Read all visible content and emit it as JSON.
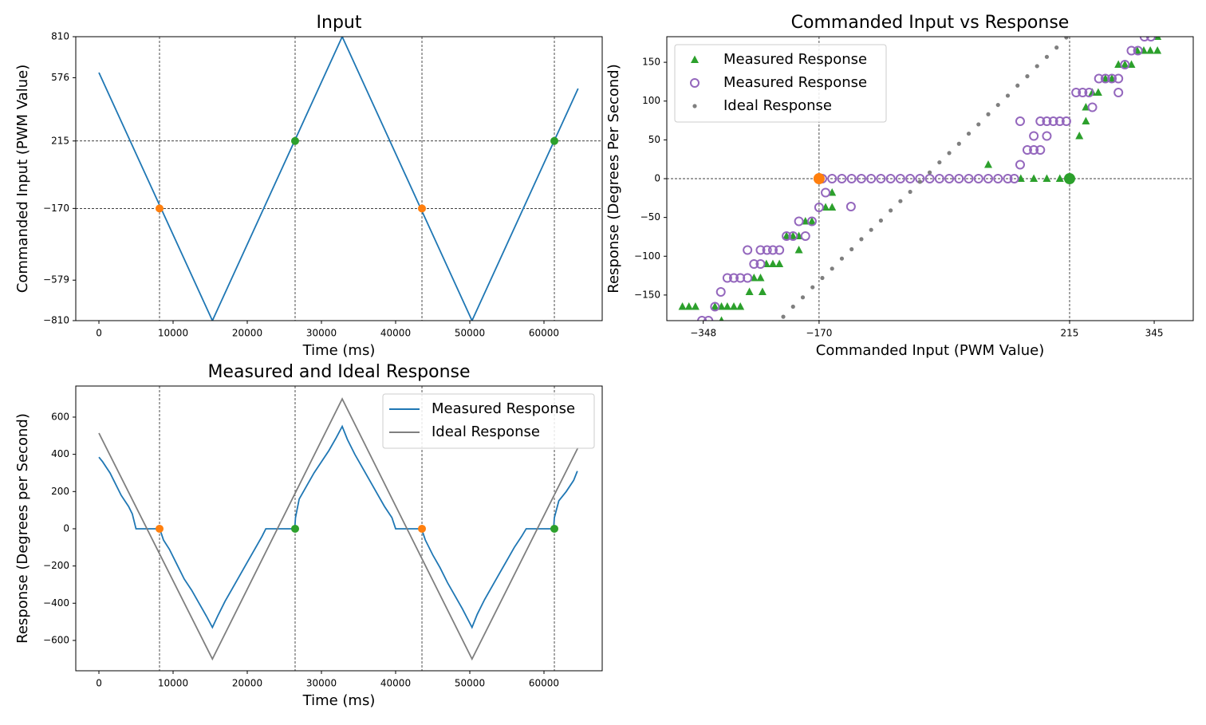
{
  "chart_data": [
    {
      "type": "line",
      "title": "Input",
      "xlabel": "Time (ms)",
      "ylabel": "Commanded Input (PWM Value)",
      "xlim": [
        -3120,
        67850
      ],
      "ylim": [
        -810,
        810
      ],
      "xticks": [
        0,
        10000,
        20000,
        30000,
        40000,
        50000,
        60000
      ],
      "yticks": [
        {
          "value": -810,
          "label": "−810"
        },
        {
          "value": -579,
          "label": "−579"
        },
        {
          "value": -170,
          "label": "−170"
        },
        215,
        576,
        810
      ],
      "vlines": [
        8170,
        26450,
        43550,
        61400
      ],
      "hlines": [
        215,
        -170
      ],
      "series": [
        {
          "color": "#1f77b4",
          "x": [
            0,
            15300,
            32800,
            50300,
            64600
          ],
          "values": [
            605,
            -810,
            810,
            -810,
            514
          ]
        }
      ],
      "points": [
        {
          "x": 8170,
          "y": -170,
          "color": "#ff7f0e"
        },
        {
          "x": 26450,
          "y": 215,
          "color": "#2ca02c"
        },
        {
          "x": 43550,
          "y": -170,
          "color": "#ff7f0e"
        },
        {
          "x": 61400,
          "y": 215,
          "color": "#2ca02c"
        }
      ]
    },
    {
      "type": "scatter",
      "title": "Commanded Input vs Response",
      "xlabel": "Commanded Input (PWM Value)",
      "ylabel": "Response (Degrees Per Second)",
      "xlim": [
        -404,
        405
      ],
      "ylim": [
        -183,
        183
      ],
      "xticks": [
        {
          "value": -348,
          "label": "−348"
        },
        {
          "value": -170,
          "label": "−170"
        },
        215,
        345
      ],
      "yticks": [
        {
          "value": -150,
          "label": "−150"
        },
        {
          "value": -100,
          "label": "−100"
        },
        {
          "value": -50,
          "label": "−50"
        },
        0,
        50,
        100,
        150
      ],
      "vlines": [
        -170,
        215
      ],
      "hlines": [
        0
      ],
      "legend": "upper left",
      "series": [
        {
          "name": "Measured Response",
          "color": "#2ca02c",
          "marker": "^",
          "x": [
            -380,
            -370,
            -360,
            -330,
            -320,
            -311,
            -301,
            -291,
            -320,
            -277,
            -257,
            -270,
            -260,
            -251,
            -241,
            -231,
            -201,
            -220,
            -210,
            -201,
            -191,
            -181,
            -160,
            -150,
            -150,
            90,
            140,
            160,
            180,
            200,
            230,
            240,
            240,
            250,
            259,
            270,
            280,
            290,
            300,
            310,
            319,
            329,
            339,
            350,
            350
          ],
          "values": [
            -165,
            -165,
            -165,
            -165,
            -165,
            -165,
            -165,
            -165,
            -183,
            -146,
            -146,
            -128,
            -128,
            -110,
            -110,
            -110,
            -92,
            -74,
            -74,
            -74,
            -55,
            -55,
            -37,
            -37,
            -18,
            18,
            0,
            0,
            0,
            0,
            55,
            74,
            92,
            111,
            111,
            129,
            129,
            147,
            147,
            147,
            165,
            165,
            165,
            165,
            183
          ]
        },
        {
          "name": "Measured Response",
          "color": "#9467bd",
          "marker": "o",
          "x": [
            -350,
            -340,
            -330,
            -321,
            -311,
            -301,
            -291,
            -280,
            -270,
            -260,
            -280,
            -260,
            -250,
            -241,
            -231,
            -220,
            -210,
            -191,
            -201,
            -181,
            -170,
            -160,
            -121,
            -165,
            -150,
            -135,
            -120,
            -105,
            -90,
            -75,
            -60,
            -45,
            -30,
            -15,
            0,
            15,
            30,
            45,
            60,
            75,
            90,
            105,
            120,
            130,
            139,
            139,
            150,
            160,
            170,
            160,
            180,
            170,
            180,
            190,
            200,
            210,
            225,
            235,
            245,
            250,
            260,
            270,
            280,
            290,
            290,
            300,
            310,
            320,
            330,
            340
          ],
          "values": [
            -183,
            -183,
            -165,
            -146,
            -128,
            -128,
            -128,
            -128,
            -110,
            -110,
            -92,
            -92,
            -92,
            -92,
            -92,
            -74,
            -74,
            -74,
            -55,
            -55,
            -37,
            -18,
            -36,
            0,
            0,
            0,
            0,
            0,
            0,
            0,
            0,
            0,
            0,
            0,
            0,
            0,
            0,
            0,
            0,
            0,
            0,
            0,
            0,
            0,
            18,
            74,
            37,
            37,
            37,
            55,
            55,
            74,
            74,
            74,
            74,
            74,
            111,
            111,
            111,
            92,
            129,
            129,
            129,
            111,
            129,
            147,
            165,
            165,
            183,
            183
          ]
        },
        {
          "name": "Ideal Response",
          "color": "#7f7f7f",
          "marker": ".",
          "x": [
            -240,
            -225,
            -210,
            -195,
            -180,
            -165,
            -150,
            -135,
            -120,
            -105,
            -90,
            -75,
            -60,
            -45,
            -30,
            -15,
            0,
            15,
            30,
            45,
            60,
            75,
            90,
            105,
            120,
            135,
            150,
            165,
            180,
            195,
            210
          ],
          "values": [
            -190,
            -178,
            -165,
            -153,
            -140,
            -128,
            -116,
            -103,
            -91,
            -78,
            -66,
            -54,
            -41,
            -29,
            -17,
            -4,
            8,
            21,
            33,
            45,
            58,
            70,
            83,
            95,
            107,
            120,
            132,
            145,
            157,
            169,
            182
          ]
        }
      ],
      "points": [
        {
          "x": -170,
          "y": 0,
          "color": "#ff7f0e"
        },
        {
          "x": 215,
          "y": 0,
          "color": "#2ca02c"
        }
      ]
    },
    {
      "type": "line",
      "title": "Measured and Ideal Response",
      "xlabel": "Time (ms)",
      "ylabel": "Response (Degrees per Second)",
      "xlim": [
        -3120,
        67850
      ],
      "ylim": [
        -763,
        767
      ],
      "xticks": [
        0,
        10000,
        20000,
        30000,
        40000,
        50000,
        60000
      ],
      "yticks": [
        {
          "value": -600,
          "label": "−600"
        },
        {
          "value": -400,
          "label": "−400"
        },
        {
          "value": -200,
          "label": "−200"
        },
        0,
        200,
        400,
        600
      ],
      "vlines": [
        8170,
        26450,
        43550,
        61400
      ],
      "legend": "upper right",
      "series": [
        {
          "name": "Measured Response",
          "color": "#1f77b4",
          "x": [
            0,
            500,
            1000,
            1500,
            2000,
            2500,
            3000,
            3500,
            4000,
            4500,
            5000,
            5100,
            8200,
            8700,
            9500,
            10500,
            11500,
            12500,
            13500,
            14500,
            15300,
            16000,
            17000,
            18000,
            19000,
            20000,
            21000,
            22000,
            22500,
            26400,
            26500,
            27000,
            28000,
            29000,
            30000,
            31000,
            32000,
            32800,
            33500,
            34500,
            35500,
            36500,
            37500,
            38500,
            39500,
            40000,
            43500,
            44000,
            45000,
            46000,
            47000,
            48000,
            49000,
            50300,
            51000,
            52000,
            53000,
            54000,
            55000,
            56000,
            57000,
            57600,
            61300,
            61400,
            62000,
            63000,
            64000,
            64500
          ],
          "values": [
            385,
            360,
            330,
            300,
            260,
            220,
            180,
            150,
            120,
            80,
            0,
            0,
            0,
            -60,
            -110,
            -190,
            -270,
            -330,
            -400,
            -470,
            -530,
            -470,
            -390,
            -320,
            -250,
            -180,
            -110,
            -40,
            0,
            0,
            60,
            160,
            230,
            300,
            360,
            420,
            490,
            550,
            480,
            400,
            330,
            260,
            190,
            120,
            60,
            0,
            0,
            -60,
            -140,
            -210,
            -290,
            -360,
            -430,
            -530,
            -460,
            -380,
            -310,
            -240,
            -170,
            -100,
            -40,
            0,
            0,
            60,
            150,
            200,
            260,
            310
          ]
        },
        {
          "name": "Ideal Response",
          "color": "#7f7f7f",
          "x": [
            0,
            15300,
            32800,
            50300,
            64600
          ],
          "values": [
            514,
            -700,
            698,
            -700,
            437
          ]
        }
      ],
      "points": [
        {
          "x": 8170,
          "y": 0,
          "color": "#ff7f0e"
        },
        {
          "x": 26450,
          "y": 0,
          "color": "#2ca02c"
        },
        {
          "x": 43550,
          "y": 0,
          "color": "#ff7f0e"
        },
        {
          "x": 61400,
          "y": 0,
          "color": "#2ca02c"
        }
      ]
    }
  ]
}
